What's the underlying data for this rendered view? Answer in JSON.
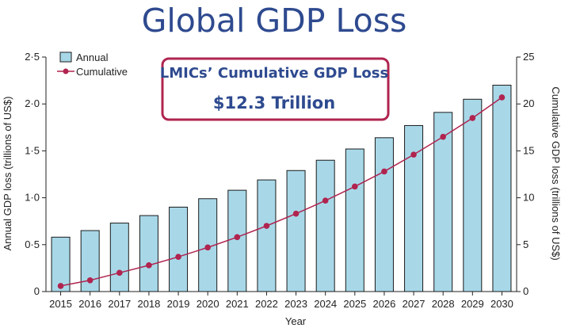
{
  "title": "Global GDP Loss",
  "callout": {
    "line1": "LMICs’ Cumulative GDP Loss",
    "line2": "$12.3 Trillion"
  },
  "colors": {
    "bar_fill": "#a8d8e8",
    "bar_stroke": "#1a1a1a",
    "line": "#b0244f",
    "title": "#2e4a8f",
    "callout_border": "#b0244f"
  },
  "chart_data": {
    "type": "bar",
    "xlabel": "Year",
    "ylabel_left": "Annual GDP loss (trillions of US$)",
    "ylabel_right": "Cumulative GDP loss (trillions of US$)",
    "categories": [
      "2015",
      "2016",
      "2017",
      "2018",
      "2019",
      "2020",
      "2021",
      "2022",
      "2023",
      "2024",
      "2025",
      "2026",
      "2027",
      "2028",
      "2029",
      "2030"
    ],
    "left_axis": {
      "ylim": [
        0,
        2.5
      ],
      "ticks": [
        0,
        0.5,
        1.0,
        1.5,
        2.0,
        2.5
      ],
      "tick_labels": [
        "0",
        "0·5",
        "1·0",
        "1·5",
        "2·0",
        "2·5"
      ]
    },
    "right_axis": {
      "ylim": [
        0,
        25
      ],
      "ticks": [
        0,
        5,
        10,
        15,
        20,
        25
      ],
      "tick_labels": [
        "0",
        "5",
        "10",
        "15",
        "20",
        "25"
      ]
    },
    "series": [
      {
        "name": "Annual",
        "type": "bar",
        "axis": "left",
        "values": [
          0.58,
          0.65,
          0.73,
          0.81,
          0.9,
          0.99,
          1.08,
          1.19,
          1.29,
          1.4,
          1.52,
          1.64,
          1.77,
          1.91,
          2.05,
          2.2
        ]
      },
      {
        "name": "Cumulative",
        "type": "line",
        "axis": "right",
        "values": [
          0.6,
          1.2,
          2.0,
          2.8,
          3.7,
          4.7,
          5.8,
          7.0,
          8.3,
          9.7,
          11.2,
          12.8,
          14.6,
          16.5,
          18.5,
          20.7
        ]
      }
    ],
    "legend": [
      "Annual",
      "Cumulative"
    ]
  }
}
